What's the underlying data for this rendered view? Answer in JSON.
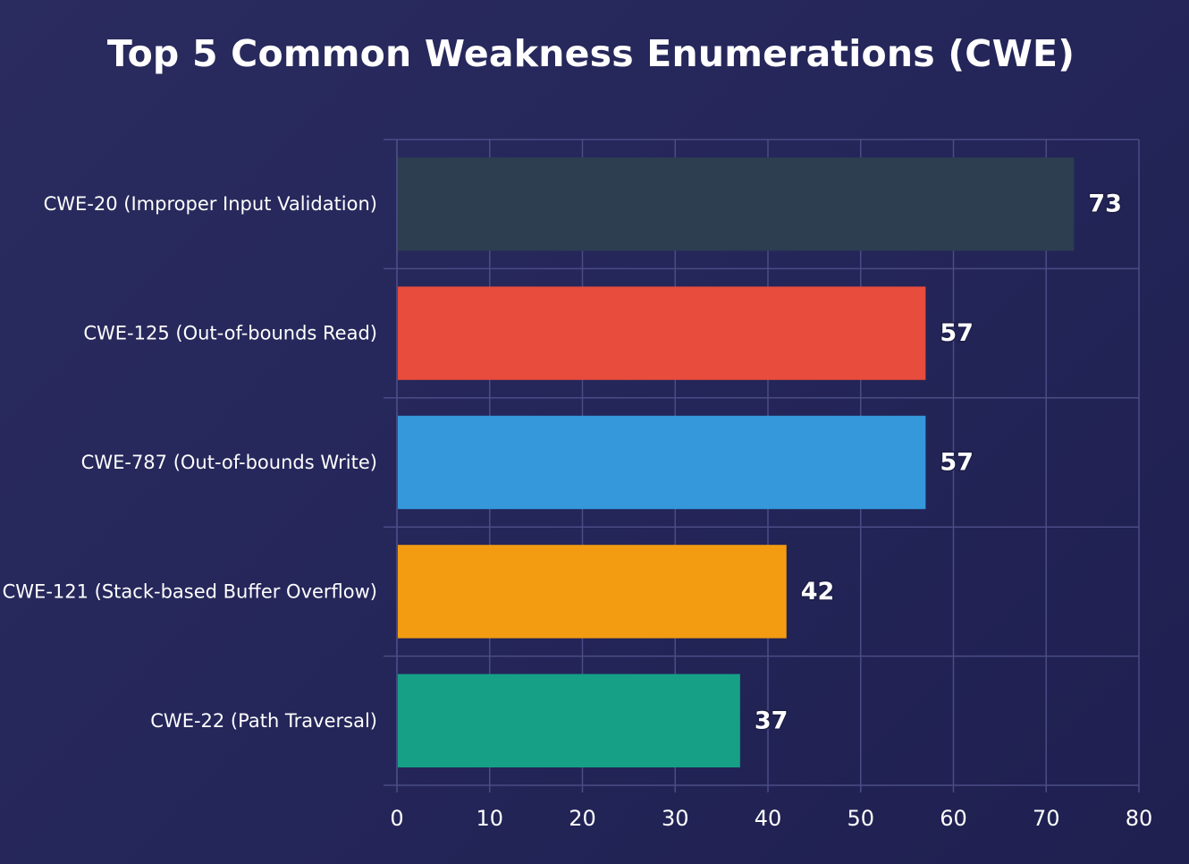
{
  "chart_data": {
    "type": "bar",
    "orientation": "horizontal",
    "title": "Top 5 Common Weakness Enumerations (CWE)",
    "xlabel": "",
    "ylabel": "",
    "xlim": [
      0,
      80
    ],
    "x_ticks": [
      0,
      10,
      20,
      30,
      40,
      50,
      60,
      70,
      80
    ],
    "grid": true,
    "categories": [
      "CWE-20 (Improper Input Validation)",
      "CWE-125 (Out-of-bounds Read)",
      "CWE-787 (Out-of-bounds Write)",
      "CWE-121 (Stack-based Buffer Overflow)",
      "CWE-22 (Path Traversal)"
    ],
    "values": [
      73,
      57,
      57,
      42,
      37
    ],
    "colors": [
      "#2c3e50",
      "#e74c3c",
      "#3498db",
      "#f39c12",
      "#16a085"
    ]
  }
}
